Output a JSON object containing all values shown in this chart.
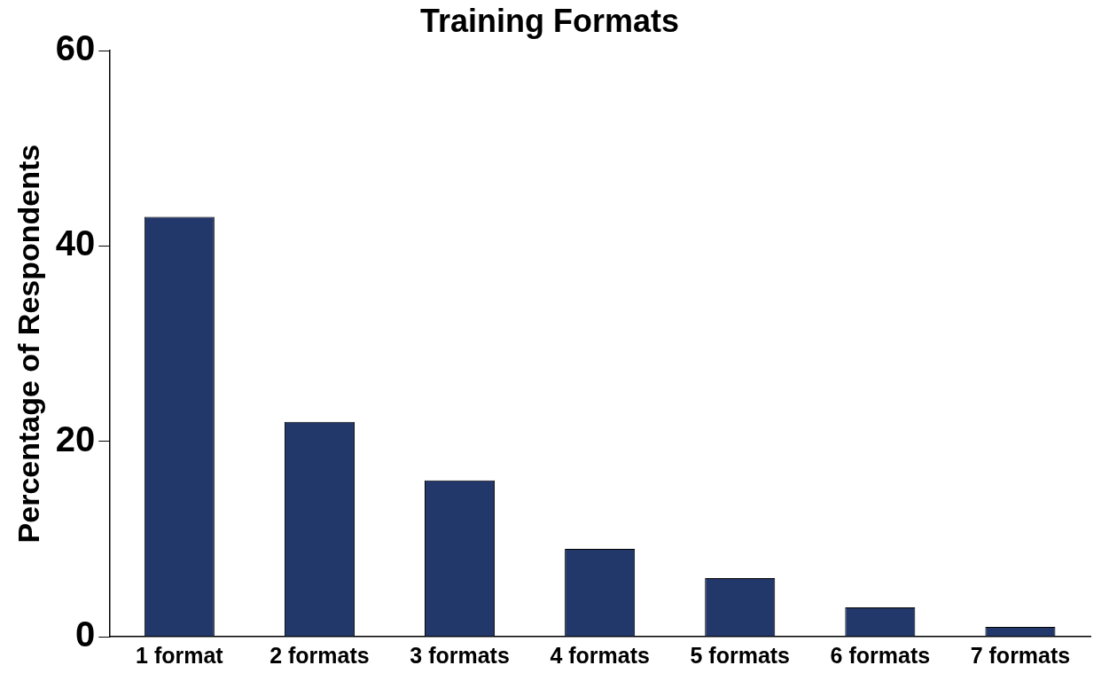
{
  "chart_data": {
    "type": "bar",
    "title": "Training Formats",
    "ylabel": "Percentage of Respondents",
    "categories": [
      "1 format",
      "2 formats",
      "3 formats",
      "4 formats",
      "5 formats",
      "6 formats",
      "7 formats"
    ],
    "values": [
      43,
      22,
      16,
      9,
      6,
      3,
      1
    ],
    "color": "#22376a",
    "ylim": [
      0,
      60
    ],
    "yticks": [
      0,
      20,
      40,
      60
    ],
    "grid": false,
    "legend": false
  }
}
